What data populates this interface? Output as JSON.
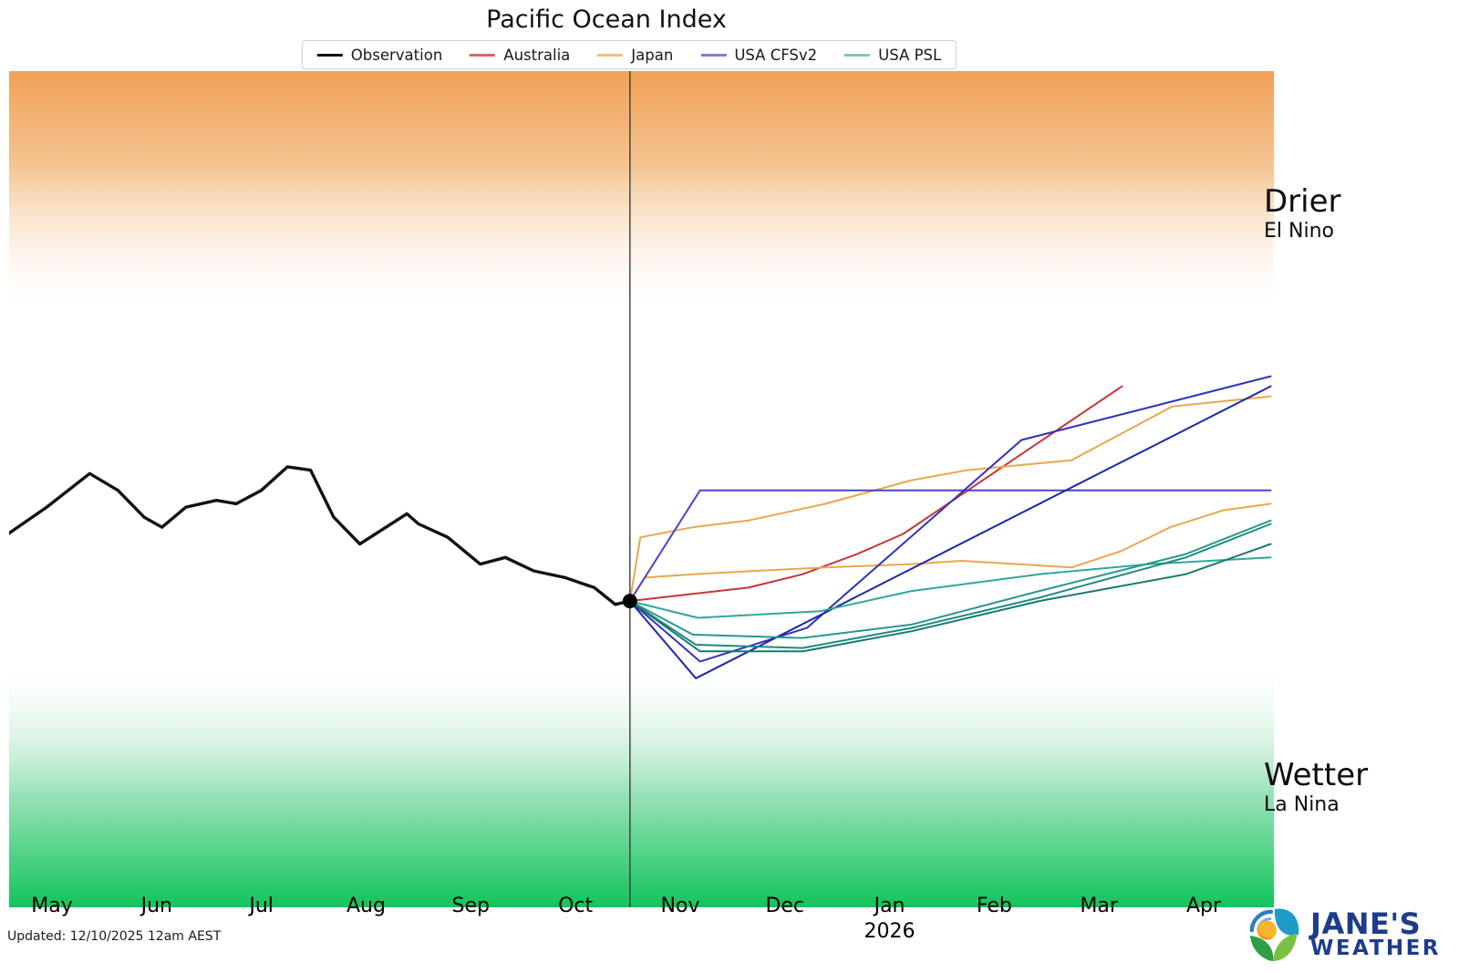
{
  "title": "Pacific Ocean Index",
  "legend": {
    "items": [
      {
        "label": "Observation",
        "color": "#111111"
      },
      {
        "label": "Australia",
        "color": "#d96666"
      },
      {
        "label": "Japan",
        "color": "#f0c275"
      },
      {
        "label": "USA CFSv2",
        "color": "#837bd6"
      },
      {
        "label": "USA PSL",
        "color": "#7fc3bc"
      }
    ]
  },
  "annotations": {
    "drier": "Drier",
    "el_nino": "El Nino",
    "wetter": "Wetter",
    "la_nina": "La Nina"
  },
  "footer": {
    "updated": "Updated: 12/10/2025 12am AEST"
  },
  "logo": {
    "line1": "JANE'S",
    "line2": "WEATHER",
    "text_color": "#1e3c8c"
  },
  "chart_data": {
    "type": "line",
    "title": "Pacific Ocean Index",
    "x_labels": [
      "May",
      "Jun",
      "Jul",
      "Aug",
      "Sep",
      "Oct",
      "Nov",
      "Dec",
      "Jan",
      "Feb",
      "Mar",
      "Apr"
    ],
    "x_year": {
      "label": "2026",
      "month_index": 8
    },
    "ylim": [
      -1.25,
      1.24
    ],
    "y_axis_visible": false,
    "grid": false,
    "legend_position": "top-center",
    "bands": {
      "el_nino": {
        "from": 0.5,
        "to": 1.24,
        "label": "Drier / El Nino",
        "color_solid": "#f0a155",
        "color_mid": "#f5c491",
        "color_fade": "rgba(255,255,255,0)"
      },
      "la_nina": {
        "from": -1.25,
        "to": -0.5,
        "label": "Wetter / La Nina",
        "color_solid": "#13c45c",
        "color_mid": "#9ae2b8",
        "color_fade": "rgba(255,255,255,0)"
      }
    },
    "now_marker": {
      "x": 5.52,
      "value": -0.34,
      "line_color": "#3c3c3c",
      "dot_color": "#000000",
      "dot_radius": 8
    },
    "series": [
      {
        "name": "Observation",
        "model": "observation",
        "color": "#111111",
        "width": 3.4,
        "points": [
          [
            -0.42,
            -0.14
          ],
          [
            -0.05,
            -0.06
          ],
          [
            0.36,
            0.04
          ],
          [
            0.63,
            -0.01
          ],
          [
            0.88,
            -0.09
          ],
          [
            1.05,
            -0.12
          ],
          [
            1.28,
            -0.06
          ],
          [
            1.57,
            -0.04
          ],
          [
            1.76,
            -0.05
          ],
          [
            2.0,
            -0.01
          ],
          [
            2.25,
            0.06
          ],
          [
            2.47,
            0.05
          ],
          [
            2.69,
            -0.09
          ],
          [
            2.94,
            -0.17
          ],
          [
            3.39,
            -0.08
          ],
          [
            3.5,
            -0.11
          ],
          [
            3.78,
            -0.15
          ],
          [
            4.09,
            -0.23
          ],
          [
            4.33,
            -0.21
          ],
          [
            4.6,
            -0.25
          ],
          [
            4.9,
            -0.27
          ],
          [
            5.18,
            -0.3
          ],
          [
            5.38,
            -0.35
          ],
          [
            5.52,
            -0.34
          ]
        ]
      },
      {
        "name": "Australia",
        "model": "australia",
        "color": "#c93535",
        "width": 2,
        "points": [
          [
            5.52,
            -0.34
          ],
          [
            6.08,
            -0.32
          ],
          [
            6.65,
            -0.3
          ],
          [
            7.17,
            -0.26
          ],
          [
            7.69,
            -0.2
          ],
          [
            8.13,
            -0.14
          ],
          [
            10.22,
            0.3
          ]
        ]
      },
      {
        "name": "Japan",
        "model": "japan",
        "color": "#e8a84a",
        "width": 2,
        "points": [
          [
            5.52,
            -0.34
          ],
          [
            5.62,
            -0.15
          ],
          [
            6.12,
            -0.12
          ],
          [
            6.65,
            -0.1
          ],
          [
            7.39,
            -0.05
          ],
          [
            8.21,
            0.02
          ],
          [
            8.74,
            0.05
          ],
          [
            9.74,
            0.08
          ],
          [
            10.7,
            0.24
          ],
          [
            11.64,
            0.27
          ]
        ]
      },
      {
        "name": "Japan",
        "model": "japan",
        "color": "#e8a84a",
        "width": 2,
        "points": [
          [
            5.52,
            -0.34
          ],
          [
            5.66,
            -0.27
          ],
          [
            6.12,
            -0.26
          ],
          [
            6.73,
            -0.25
          ],
          [
            7.39,
            -0.24
          ],
          [
            8.21,
            -0.23
          ],
          [
            8.69,
            -0.22
          ],
          [
            9.74,
            -0.24
          ],
          [
            10.22,
            -0.19
          ],
          [
            10.68,
            -0.12
          ],
          [
            11.18,
            -0.07
          ],
          [
            11.64,
            -0.05
          ]
        ]
      },
      {
        "name": "USA CFSv2",
        "model": "usa-cfsv2",
        "color": "#4a42d0",
        "width": 2,
        "points": [
          [
            5.52,
            -0.34
          ],
          [
            6.19,
            -0.01
          ],
          [
            11.64,
            -0.01
          ]
        ]
      },
      {
        "name": "USA CFSv2",
        "model": "usa-cfsv2",
        "color": "#2c35c0",
        "width": 2,
        "points": [
          [
            5.52,
            -0.34
          ],
          [
            6.19,
            -0.52
          ],
          [
            7.21,
            -0.42
          ],
          [
            9.26,
            0.14
          ],
          [
            11.64,
            0.33
          ]
        ]
      },
      {
        "name": "USA CFSv2",
        "model": "usa-cfsv2",
        "color": "#1e27a8",
        "width": 2,
        "points": [
          [
            5.52,
            -0.34
          ],
          [
            6.15,
            -0.57
          ],
          [
            11.64,
            0.3
          ]
        ]
      },
      {
        "name": "USA PSL",
        "model": "usa-psl",
        "color": "#2fa89a",
        "width": 2,
        "points": [
          [
            5.52,
            -0.34
          ],
          [
            6.17,
            -0.39
          ],
          [
            7.34,
            -0.37
          ],
          [
            8.21,
            -0.31
          ],
          [
            9.43,
            -0.26
          ],
          [
            10.48,
            -0.23
          ],
          [
            11.64,
            -0.21
          ]
        ]
      },
      {
        "name": "USA PSL",
        "model": "usa-psl",
        "color": "#27998c",
        "width": 2,
        "points": [
          [
            5.52,
            -0.34
          ],
          [
            6.12,
            -0.44
          ],
          [
            7.17,
            -0.45
          ],
          [
            8.21,
            -0.41
          ],
          [
            9.43,
            -0.31
          ],
          [
            10.83,
            -0.2
          ],
          [
            11.64,
            -0.1
          ]
        ]
      },
      {
        "name": "USA PSL",
        "model": "usa-psl",
        "color": "#1f8a7e",
        "width": 2,
        "points": [
          [
            5.52,
            -0.34
          ],
          [
            6.15,
            -0.47
          ],
          [
            7.17,
            -0.48
          ],
          [
            8.21,
            -0.42
          ],
          [
            9.43,
            -0.33
          ],
          [
            10.83,
            -0.21
          ],
          [
            11.64,
            -0.11
          ]
        ]
      },
      {
        "name": "USA PSL",
        "model": "usa-psl",
        "color": "#18796e",
        "width": 2,
        "points": [
          [
            5.52,
            -0.34
          ],
          [
            6.19,
            -0.49
          ],
          [
            7.17,
            -0.49
          ],
          [
            8.21,
            -0.43
          ],
          [
            9.43,
            -0.34
          ],
          [
            10.83,
            -0.26
          ],
          [
            11.64,
            -0.17
          ]
        ]
      }
    ]
  }
}
